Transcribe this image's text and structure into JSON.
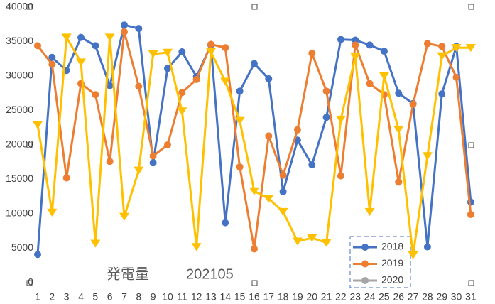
{
  "chart_data": {
    "type": "line",
    "title": "発電量",
    "subtitle": "202105",
    "categories": [
      "1",
      "2",
      "3",
      "4",
      "5",
      "6",
      "7",
      "8",
      "9",
      "10",
      "11",
      "12",
      "13",
      "14",
      "15",
      "16",
      "17",
      "18",
      "19",
      "20",
      "21",
      "22",
      "23",
      "24",
      "25",
      "26",
      "27",
      "28",
      "29",
      "30",
      "31"
    ],
    "series": [
      {
        "name": "2018",
        "color": "#4472c4",
        "marker": "circle",
        "values": [
          4100,
          32700,
          30800,
          35600,
          34400,
          28600,
          37400,
          36900,
          17400,
          31100,
          33500,
          29900,
          34500,
          8700,
          27800,
          31800,
          29600,
          13200,
          20700,
          17100,
          24000,
          35300,
          35200,
          34500,
          33600,
          27500,
          26000,
          5200,
          27400,
          34300,
          11700
        ]
      },
      {
        "name": "2019",
        "color": "#ed7d31",
        "marker": "circle",
        "values": [
          34400,
          31700,
          15200,
          28900,
          27300,
          17600,
          36400,
          28500,
          18400,
          20000,
          27600,
          29500,
          34600,
          34100,
          16800,
          4900,
          21300,
          15600,
          22200,
          33300,
          27800,
          15500,
          34500,
          28900,
          27300,
          14600,
          25900,
          34700,
          34300,
          29800,
          9900
        ]
      },
      {
        "name": "2020",
        "color": "#ffc000",
        "legend_color": "#a5a5a5",
        "marker": "triangle-down",
        "values": [
          22900,
          10200,
          35600,
          32000,
          5700,
          35600,
          9600,
          16300,
          33200,
          33400,
          24900,
          5200,
          33500,
          29200,
          23500,
          13300,
          12200,
          10300,
          6000,
          6500,
          5800,
          23700,
          32800,
          10300,
          30000,
          22200,
          4000,
          18400,
          32900,
          34100,
          34100
        ]
      }
    ],
    "ylim": [
      0,
      40000
    ],
    "yticks": [
      0,
      5000,
      10000,
      15000,
      20000,
      25000,
      30000,
      35000,
      40000
    ],
    "grid": false
  }
}
